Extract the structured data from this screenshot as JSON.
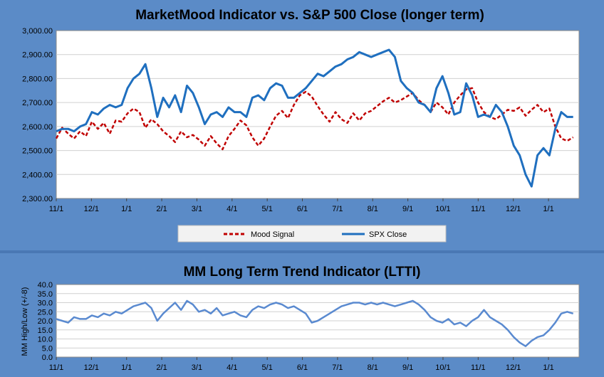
{
  "colors": {
    "background": "#5b8bc7",
    "plot_bg": "#ffffff",
    "grid": "#d0d0d0",
    "spx": "#1f6fbf",
    "mood": "#c00000",
    "ltti": "#5a8ad0"
  },
  "chart_data": [
    {
      "type": "line",
      "title": "MarketMood Indicator vs. S&P 500 Close (longer term)",
      "xlabel": "",
      "ylabel": "",
      "ylim": [
        2300,
        3000
      ],
      "yticks": [
        "2,300.00",
        "2,400.00",
        "2,500.00",
        "2,600.00",
        "2,700.00",
        "2,800.00",
        "2,900.00",
        "3,000.00"
      ],
      "xticks": [
        "11/1",
        "12/1",
        "1/1",
        "2/1",
        "3/1",
        "4/1",
        "5/1",
        "6/1",
        "7/1",
        "8/1",
        "9/1",
        "10/1",
        "11/1",
        "12/1",
        "1/1"
      ],
      "xrange_days": [
        0,
        88
      ],
      "grid": true,
      "legend_position": "bottom",
      "series": [
        {
          "name": "Mood Signal",
          "style": "dashed",
          "points": [
            [
              0,
              2550
            ],
            [
              1,
              2595
            ],
            [
              2,
              2570
            ],
            [
              3,
              2550
            ],
            [
              4,
              2580
            ],
            [
              5,
              2560
            ],
            [
              6,
              2620
            ],
            [
              7,
              2590
            ],
            [
              8,
              2615
            ],
            [
              9,
              2570
            ],
            [
              10,
              2625
            ],
            [
              11,
              2620
            ],
            [
              12,
              2655
            ],
            [
              13,
              2675
            ],
            [
              14,
              2660
            ],
            [
              15,
              2595
            ],
            [
              16,
              2630
            ],
            [
              17,
              2610
            ],
            [
              18,
              2580
            ],
            [
              19,
              2560
            ],
            [
              20,
              2535
            ],
            [
              21,
              2580
            ],
            [
              22,
              2555
            ],
            [
              23,
              2565
            ],
            [
              24,
              2545
            ],
            [
              25,
              2520
            ],
            [
              26,
              2560
            ],
            [
              27,
              2530
            ],
            [
              28,
              2505
            ],
            [
              29,
              2560
            ],
            [
              30,
              2590
            ],
            [
              31,
              2625
            ],
            [
              32,
              2605
            ],
            [
              33,
              2555
            ],
            [
              34,
              2520
            ],
            [
              35,
              2550
            ],
            [
              36,
              2600
            ],
            [
              37,
              2645
            ],
            [
              38,
              2665
            ],
            [
              39,
              2635
            ],
            [
              40,
              2690
            ],
            [
              41,
              2730
            ],
            [
              42,
              2745
            ],
            [
              43,
              2725
            ],
            [
              44,
              2685
            ],
            [
              45,
              2650
            ],
            [
              46,
              2620
            ],
            [
              47,
              2660
            ],
            [
              48,
              2630
            ],
            [
              49,
              2615
            ],
            [
              50,
              2655
            ],
            [
              51,
              2625
            ],
            [
              52,
              2655
            ],
            [
              53,
              2665
            ],
            [
              54,
              2685
            ],
            [
              55,
              2705
            ],
            [
              56,
              2720
            ],
            [
              57,
              2700
            ],
            [
              58,
              2710
            ],
            [
              59,
              2725
            ],
            [
              60,
              2740
            ],
            [
              61,
              2710
            ],
            [
              62,
              2690
            ],
            [
              63,
              2660
            ],
            [
              64,
              2700
            ],
            [
              65,
              2680
            ],
            [
              66,
              2650
            ],
            [
              67,
              2700
            ],
            [
              68,
              2730
            ],
            [
              69,
              2755
            ],
            [
              70,
              2760
            ],
            [
              71,
              2700
            ],
            [
              72,
              2660
            ],
            [
              73,
              2640
            ],
            [
              74,
              2630
            ],
            [
              75,
              2650
            ],
            [
              76,
              2670
            ],
            [
              77,
              2665
            ],
            [
              78,
              2680
            ],
            [
              79,
              2645
            ],
            [
              80,
              2670
            ],
            [
              81,
              2690
            ],
            [
              82,
              2660
            ],
            [
              83,
              2675
            ],
            [
              84,
              2600
            ],
            [
              85,
              2550
            ],
            [
              86,
              2540
            ],
            [
              87,
              2555
            ]
          ]
        },
        {
          "name": "SPX Close",
          "style": "solid",
          "points": [
            [
              0,
              2580
            ],
            [
              1,
              2590
            ],
            [
              2,
              2590
            ],
            [
              3,
              2580
            ],
            [
              4,
              2600
            ],
            [
              5,
              2610
            ],
            [
              6,
              2660
            ],
            [
              7,
              2650
            ],
            [
              8,
              2675
            ],
            [
              9,
              2690
            ],
            [
              10,
              2680
            ],
            [
              11,
              2690
            ],
            [
              12,
              2760
            ],
            [
              13,
              2800
            ],
            [
              14,
              2820
            ],
            [
              15,
              2860
            ],
            [
              16,
              2760
            ],
            [
              17,
              2640
            ],
            [
              18,
              2720
            ],
            [
              19,
              2680
            ],
            [
              20,
              2730
            ],
            [
              21,
              2660
            ],
            [
              22,
              2770
            ],
            [
              23,
              2740
            ],
            [
              24,
              2680
            ],
            [
              25,
              2610
            ],
            [
              26,
              2650
            ],
            [
              27,
              2660
            ],
            [
              28,
              2640
            ],
            [
              29,
              2680
            ],
            [
              30,
              2660
            ],
            [
              31,
              2660
            ],
            [
              32,
              2640
            ],
            [
              33,
              2720
            ],
            [
              34,
              2730
            ],
            [
              35,
              2710
            ],
            [
              36,
              2760
            ],
            [
              37,
              2780
            ],
            [
              38,
              2770
            ],
            [
              39,
              2720
            ],
            [
              40,
              2720
            ],
            [
              41,
              2740
            ],
            [
              42,
              2760
            ],
            [
              43,
              2790
            ],
            [
              44,
              2820
            ],
            [
              45,
              2810
            ],
            [
              46,
              2830
            ],
            [
              47,
              2850
            ],
            [
              48,
              2860
            ],
            [
              49,
              2880
            ],
            [
              50,
              2890
            ],
            [
              51,
              2910
            ],
            [
              52,
              2900
            ],
            [
              53,
              2890
            ],
            [
              54,
              2900
            ],
            [
              55,
              2910
            ],
            [
              56,
              2920
            ],
            [
              57,
              2890
            ],
            [
              58,
              2790
            ],
            [
              59,
              2760
            ],
            [
              60,
              2740
            ],
            [
              61,
              2700
            ],
            [
              62,
              2690
            ],
            [
              63,
              2660
            ],
            [
              64,
              2760
            ],
            [
              65,
              2810
            ],
            [
              66,
              2740
            ],
            [
              67,
              2650
            ],
            [
              68,
              2660
            ],
            [
              69,
              2780
            ],
            [
              70,
              2730
            ],
            [
              71,
              2640
            ],
            [
              72,
              2650
            ],
            [
              73,
              2640
            ],
            [
              74,
              2690
            ],
            [
              75,
              2660
            ],
            [
              76,
              2600
            ],
            [
              77,
              2520
            ],
            [
              78,
              2480
            ],
            [
              79,
              2400
            ],
            [
              80,
              2350
            ],
            [
              81,
              2480
            ],
            [
              82,
              2510
            ],
            [
              83,
              2480
            ],
            [
              84,
              2590
            ],
            [
              85,
              2660
            ],
            [
              86,
              2640
            ],
            [
              87,
              2640
            ]
          ]
        }
      ]
    },
    {
      "type": "line",
      "title": "MM Long Term Trend Indicator (LTTI)",
      "xlabel": "",
      "ylabel": "MM High/Low (+/-8)",
      "ylim": [
        0,
        40
      ],
      "yticks": [
        "0.0",
        "5.0",
        "10.0",
        "15.0",
        "20.0",
        "25.0",
        "30.0",
        "35.0",
        "40.0"
      ],
      "xticks": [
        "11/1",
        "12/1",
        "1/1",
        "2/1",
        "3/1",
        "4/1",
        "5/1",
        "6/1",
        "7/1",
        "8/1",
        "9/1",
        "10/1",
        "11/1",
        "12/1",
        "1/1"
      ],
      "xrange_days": [
        0,
        88
      ],
      "grid": true,
      "series": [
        {
          "name": "",
          "style": "solid",
          "points": [
            [
              0,
              21
            ],
            [
              1,
              20
            ],
            [
              2,
              19
            ],
            [
              3,
              22
            ],
            [
              4,
              21
            ],
            [
              5,
              21
            ],
            [
              6,
              23
            ],
            [
              7,
              22
            ],
            [
              8,
              24
            ],
            [
              9,
              23
            ],
            [
              10,
              25
            ],
            [
              11,
              24
            ],
            [
              12,
              26
            ],
            [
              13,
              28
            ],
            [
              14,
              29
            ],
            [
              15,
              30
            ],
            [
              16,
              27
            ],
            [
              17,
              20
            ],
            [
              18,
              24
            ],
            [
              19,
              27
            ],
            [
              20,
              30
            ],
            [
              21,
              26
            ],
            [
              22,
              31
            ],
            [
              23,
              29
            ],
            [
              24,
              25
            ],
            [
              25,
              26
            ],
            [
              26,
              24
            ],
            [
              27,
              27
            ],
            [
              28,
              23
            ],
            [
              29,
              24
            ],
            [
              30,
              25
            ],
            [
              31,
              23
            ],
            [
              32,
              22
            ],
            [
              33,
              26
            ],
            [
              34,
              28
            ],
            [
              35,
              27
            ],
            [
              36,
              29
            ],
            [
              37,
              30
            ],
            [
              38,
              29
            ],
            [
              39,
              27
            ],
            [
              40,
              28
            ],
            [
              41,
              26
            ],
            [
              42,
              24
            ],
            [
              43,
              19
            ],
            [
              44,
              20
            ],
            [
              45,
              22
            ],
            [
              46,
              24
            ],
            [
              47,
              26
            ],
            [
              48,
              28
            ],
            [
              49,
              29
            ],
            [
              50,
              30
            ],
            [
              51,
              30
            ],
            [
              52,
              29
            ],
            [
              53,
              30
            ],
            [
              54,
              29
            ],
            [
              55,
              30
            ],
            [
              56,
              29
            ],
            [
              57,
              28
            ],
            [
              58,
              29
            ],
            [
              59,
              30
            ],
            [
              60,
              31
            ],
            [
              61,
              29
            ],
            [
              62,
              26
            ],
            [
              63,
              22
            ],
            [
              64,
              20
            ],
            [
              65,
              19
            ],
            [
              66,
              21
            ],
            [
              67,
              18
            ],
            [
              68,
              19
            ],
            [
              69,
              17
            ],
            [
              70,
              20
            ],
            [
              71,
              22
            ],
            [
              72,
              26
            ],
            [
              73,
              22
            ],
            [
              74,
              20
            ],
            [
              75,
              18
            ],
            [
              76,
              15
            ],
            [
              77,
              11
            ],
            [
              78,
              8
            ],
            [
              79,
              6
            ],
            [
              80,
              9
            ],
            [
              81,
              11
            ],
            [
              82,
              12
            ],
            [
              83,
              15
            ],
            [
              84,
              19
            ],
            [
              85,
              24
            ],
            [
              86,
              25
            ],
            [
              87,
              24
            ]
          ]
        }
      ]
    }
  ]
}
